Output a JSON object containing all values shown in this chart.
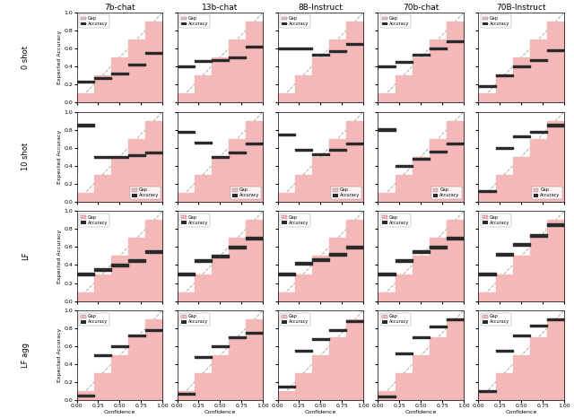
{
  "columns": [
    "7b-chat",
    "13b-chat",
    "8B-Instruct",
    "70b-chat",
    "70B-Instruct"
  ],
  "rows": [
    "0 shot",
    "10 shot",
    "LF",
    "LF agg"
  ],
  "background_color": "#ffffff",
  "gap_color": "#f5b8b8",
  "accuracy_color": "#2a2a2a",
  "diagonal_color": "#aaaaaa",
  "plots": {
    "0shot_7bchat": {
      "bin_edges": [
        0.0,
        0.2,
        0.4,
        0.6,
        0.8,
        1.0
      ],
      "accuracy": [
        0.23,
        0.27,
        0.32,
        0.42,
        0.55
      ],
      "has_data": [
        true,
        true,
        true,
        true,
        true
      ]
    },
    "0shot_13bchat": {
      "bin_edges": [
        0.0,
        0.2,
        0.4,
        0.6,
        0.8,
        1.0
      ],
      "accuracy": [
        0.4,
        0.46,
        0.47,
        0.5,
        0.62
      ],
      "has_data": [
        true,
        true,
        true,
        true,
        true
      ]
    },
    "0shot_8BInstruct": {
      "bin_edges": [
        0.0,
        0.2,
        0.4,
        0.6,
        0.8,
        1.0
      ],
      "accuracy": [
        0.6,
        0.6,
        0.53,
        0.57,
        0.65
      ],
      "has_data": [
        true,
        true,
        true,
        true,
        true
      ]
    },
    "0shot_70bchat": {
      "bin_edges": [
        0.0,
        0.2,
        0.4,
        0.6,
        0.8,
        1.0
      ],
      "accuracy": [
        0.4,
        0.45,
        0.53,
        0.6,
        0.68
      ],
      "has_data": [
        true,
        true,
        true,
        true,
        true
      ]
    },
    "0shot_70BInstruct": {
      "bin_edges": [
        0.0,
        0.2,
        0.4,
        0.6,
        0.8,
        1.0
      ],
      "accuracy": [
        0.18,
        0.3,
        0.4,
        0.47,
        0.58
      ],
      "has_data": [
        true,
        true,
        true,
        true,
        true
      ]
    },
    "10shot_7bchat": {
      "bin_edges": [
        0.0,
        0.2,
        0.4,
        0.6,
        0.8,
        1.0
      ],
      "accuracy": [
        0.85,
        0.5,
        0.5,
        0.52,
        0.55
      ],
      "has_data": [
        true,
        true,
        true,
        true,
        true
      ]
    },
    "10shot_13bchat": {
      "bin_edges": [
        0.0,
        0.2,
        0.4,
        0.6,
        0.8,
        1.0
      ],
      "accuracy": [
        0.78,
        0.66,
        0.5,
        0.55,
        0.65
      ],
      "has_data": [
        true,
        true,
        true,
        true,
        true
      ]
    },
    "10shot_8BInstruct": {
      "bin_edges": [
        0.0,
        0.2,
        0.4,
        0.6,
        0.8,
        1.0
      ],
      "accuracy": [
        0.75,
        0.58,
        0.53,
        0.58,
        0.65
      ],
      "has_data": [
        true,
        true,
        true,
        true,
        true
      ]
    },
    "10shot_70bchat": {
      "bin_edges": [
        0.0,
        0.2,
        0.4,
        0.6,
        0.8,
        1.0
      ],
      "accuracy": [
        0.8,
        0.4,
        0.48,
        0.56,
        0.65
      ],
      "has_data": [
        true,
        true,
        true,
        true,
        true
      ]
    },
    "10shot_70BInstruct": {
      "bin_edges": [
        0.0,
        0.2,
        0.4,
        0.6,
        0.8,
        1.0
      ],
      "accuracy": [
        0.12,
        0.6,
        0.73,
        0.78,
        0.85
      ],
      "has_data": [
        true,
        true,
        true,
        true,
        true
      ]
    },
    "LF_7bchat": {
      "bin_edges": [
        0.0,
        0.2,
        0.4,
        0.6,
        0.8,
        1.0
      ],
      "accuracy": [
        0.3,
        0.35,
        0.4,
        0.45,
        0.55
      ],
      "has_data": [
        true,
        true,
        true,
        true,
        true
      ]
    },
    "LF_13bchat": {
      "bin_edges": [
        0.0,
        0.2,
        0.4,
        0.6,
        0.8,
        1.0
      ],
      "accuracy": [
        0.3,
        0.45,
        0.5,
        0.6,
        0.7
      ],
      "has_data": [
        true,
        true,
        true,
        true,
        true
      ]
    },
    "LF_8BInstruct": {
      "bin_edges": [
        0.0,
        0.2,
        0.4,
        0.6,
        0.8,
        1.0
      ],
      "accuracy": [
        0.3,
        0.42,
        0.46,
        0.52,
        0.6
      ],
      "has_data": [
        true,
        true,
        true,
        true,
        true
      ]
    },
    "LF_70bchat": {
      "bin_edges": [
        0.0,
        0.2,
        0.4,
        0.6,
        0.8,
        1.0
      ],
      "accuracy": [
        0.3,
        0.45,
        0.55,
        0.6,
        0.7
      ],
      "has_data": [
        true,
        true,
        true,
        true,
        true
      ]
    },
    "LF_70BInstruct": {
      "bin_edges": [
        0.0,
        0.2,
        0.4,
        0.6,
        0.8,
        1.0
      ],
      "accuracy": [
        0.3,
        0.52,
        0.63,
        0.73,
        0.85
      ],
      "has_data": [
        true,
        true,
        true,
        true,
        true
      ]
    },
    "LFagg_7bchat": {
      "bin_edges": [
        0.0,
        0.2,
        0.4,
        0.6,
        0.8,
        1.0
      ],
      "accuracy": [
        0.05,
        0.5,
        0.6,
        0.72,
        0.78
      ],
      "has_data": [
        true,
        true,
        true,
        true,
        true
      ]
    },
    "LFagg_13bchat": {
      "bin_edges": [
        0.0,
        0.2,
        0.4,
        0.6,
        0.8,
        1.0
      ],
      "accuracy": [
        0.07,
        0.48,
        0.6,
        0.7,
        0.75
      ],
      "has_data": [
        true,
        true,
        true,
        true,
        true
      ]
    },
    "LFagg_8BInstruct": {
      "bin_edges": [
        0.0,
        0.2,
        0.4,
        0.6,
        0.8,
        1.0
      ],
      "accuracy": [
        0.15,
        0.55,
        0.68,
        0.78,
        0.88
      ],
      "has_data": [
        true,
        true,
        true,
        true,
        true
      ]
    },
    "LFagg_70bchat": {
      "bin_edges": [
        0.0,
        0.2,
        0.4,
        0.6,
        0.8,
        1.0
      ],
      "accuracy": [
        0.04,
        0.52,
        0.7,
        0.82,
        0.9
      ],
      "has_data": [
        true,
        true,
        true,
        true,
        true
      ]
    },
    "LFagg_70BInstruct": {
      "bin_edges": [
        0.0,
        0.2,
        0.4,
        0.6,
        0.8,
        1.0
      ],
      "accuracy": [
        0.1,
        0.55,
        0.72,
        0.83,
        0.9
      ],
      "has_data": [
        true,
        true,
        true,
        true,
        true
      ]
    }
  },
  "legend_locs": {
    "0shot": "upper left",
    "10shot": "lower right",
    "LF": "upper left",
    "LFagg": "upper left"
  }
}
